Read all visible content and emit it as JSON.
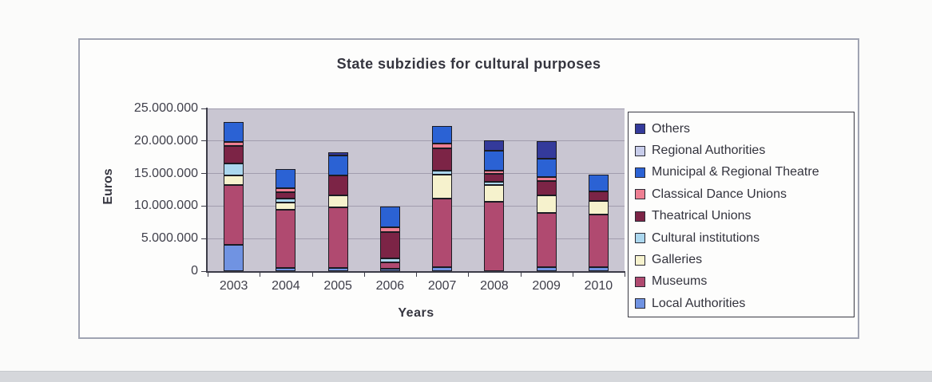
{
  "chart": {
    "title": "State subzidies for cultural purposes",
    "y_axis": {
      "label": "Euros",
      "tick_labels": [
        "25.000.000",
        "20.000.000",
        "15.000.000",
        "10.000.000",
        "5.000.000",
        "0"
      ]
    },
    "x_axis": {
      "label": "Years"
    },
    "colors": {
      "plot_background": "#c9c6d2",
      "gridline": "#a19dae",
      "axis": "#3c3c48",
      "bar_border": "#1b1b22"
    }
  },
  "chart_data": {
    "type": "bar",
    "stacked": true,
    "title": "State subzidies for cultural purposes",
    "xlabel": "Years",
    "ylabel": "Euros",
    "ylim": [
      0,
      25000000
    ],
    "y_tick_interval": 5000000,
    "grid": "horizontal",
    "legend_position": "right",
    "categories": [
      "2003",
      "2004",
      "2005",
      "2006",
      "2007",
      "2008",
      "2009",
      "2010"
    ],
    "series": [
      {
        "name": "Local Authorities",
        "color": "#7093e2",
        "values": [
          4000000,
          500000,
          500000,
          400000,
          600000,
          0,
          600000,
          600000
        ]
      },
      {
        "name": "Museums",
        "color": "#b04a70",
        "values": [
          9200000,
          8900000,
          9300000,
          1000000,
          10500000,
          10700000,
          8300000,
          8100000
        ]
      },
      {
        "name": "Galleries",
        "color": "#f6f2cd",
        "values": [
          1500000,
          1100000,
          1800000,
          0,
          3700000,
          2500000,
          2700000,
          2100000
        ]
      },
      {
        "name": "Cultural institutions",
        "color": "#abd7ee",
        "values": [
          1800000,
          600000,
          0,
          600000,
          700000,
          500000,
          0,
          0
        ]
      },
      {
        "name": "Theatrical Unions",
        "color": "#7c2446",
        "values": [
          2700000,
          1000000,
          3100000,
          4000000,
          3400000,
          1300000,
          2200000,
          1500000
        ]
      },
      {
        "name": "Classical Dance Unions",
        "color": "#ee7f92",
        "values": [
          700000,
          600000,
          0,
          700000,
          700000,
          500000,
          700000,
          0
        ]
      },
      {
        "name": "Municipal & Regional Theatre",
        "color": "#2b62d4",
        "values": [
          3000000,
          3000000,
          3100000,
          3200000,
          2700000,
          3000000,
          2800000,
          2500000
        ]
      },
      {
        "name": "Regional Authorities",
        "color": "#c8cdea",
        "values": [
          0,
          0,
          0,
          0,
          0,
          0,
          0,
          0
        ]
      },
      {
        "name": "Others",
        "color": "#343a9b",
        "values": [
          0,
          0,
          500000,
          0,
          0,
          1600000,
          2700000,
          0
        ]
      }
    ],
    "legend_order_top_to_bottom": [
      "Others",
      "Regional Authorities",
      "Municipal & Regional Theatre",
      "Classical Dance Unions",
      "Theatrical Unions",
      "Cultural institutions",
      "Galleries",
      "Museums",
      "Local Authorities"
    ]
  }
}
